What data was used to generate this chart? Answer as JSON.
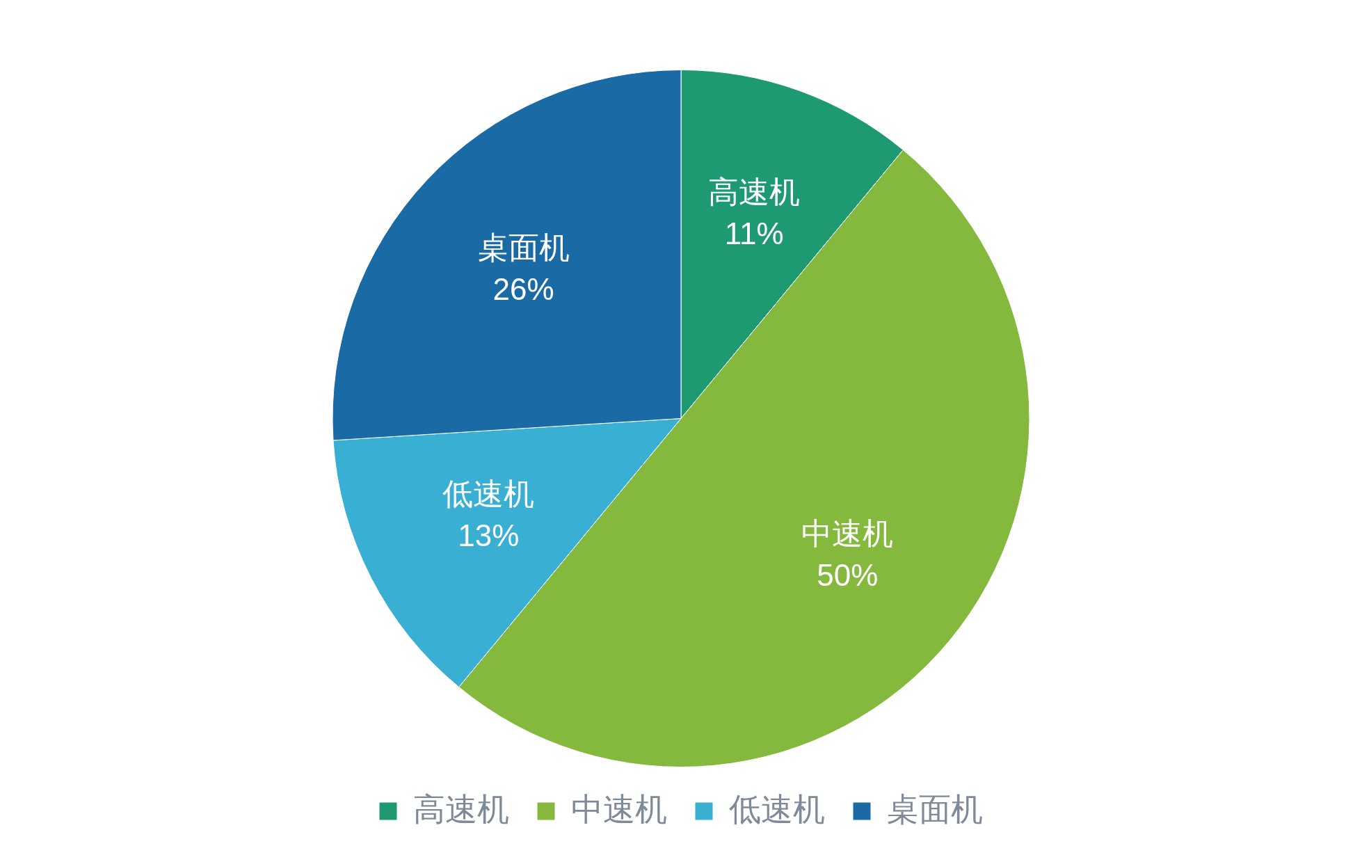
{
  "chart_data": {
    "type": "pie",
    "categories": [
      "高速机",
      "中速机",
      "低速机",
      "桌面机"
    ],
    "values": [
      11,
      50,
      13,
      26
    ],
    "value_labels": [
      "11%",
      "50%",
      "13%",
      "26%"
    ],
    "colors": [
      "#1e9a72",
      "#84b93e",
      "#38afd3",
      "#1a6aa6"
    ],
    "legend": "bottom"
  }
}
